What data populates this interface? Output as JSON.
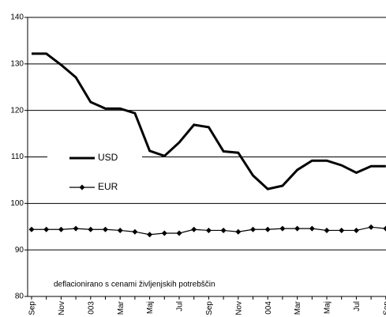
{
  "chart_data": {
    "type": "line",
    "categories": [
      "Sep",
      null,
      "Nov",
      null,
      "003",
      null,
      "Mar",
      null,
      "Maj",
      null,
      "Jul",
      null,
      "Sep",
      null,
      "Nov",
      null,
      "004",
      null,
      "Mar",
      null,
      "Maj",
      null,
      "Jul",
      null,
      "Sep"
    ],
    "series": [
      {
        "name": "USD",
        "color": "#000000",
        "marker": "none",
        "values": [
          132.2,
          132.2,
          129.8,
          127.1,
          121.8,
          120.4,
          120.4,
          119.4,
          111.3,
          110.2,
          113.1,
          116.9,
          116.4,
          111.2,
          110.9,
          106,
          103.1,
          103.8,
          107.2,
          109.2,
          109.2,
          108.2,
          106.6,
          108,
          108
        ]
      },
      {
        "name": "EUR",
        "color": "#000000",
        "marker": "diamond",
        "values": [
          94.4,
          94.4,
          94.4,
          94.6,
          94.4,
          94.4,
          94.2,
          93.9,
          93.3,
          93.6,
          93.6,
          94.4,
          94.2,
          94.2,
          93.9,
          94.4,
          94.4,
          94.6,
          94.6,
          94.6,
          94.2,
          94.2,
          94.2,
          94.9,
          94.6
        ]
      }
    ],
    "ylim": [
      80,
      140
    ],
    "yticks": [
      80,
      90,
      100,
      110,
      120,
      130,
      140
    ],
    "grid": true,
    "annotation": "deflacionirano s cenami življenjskih potrebščin"
  }
}
